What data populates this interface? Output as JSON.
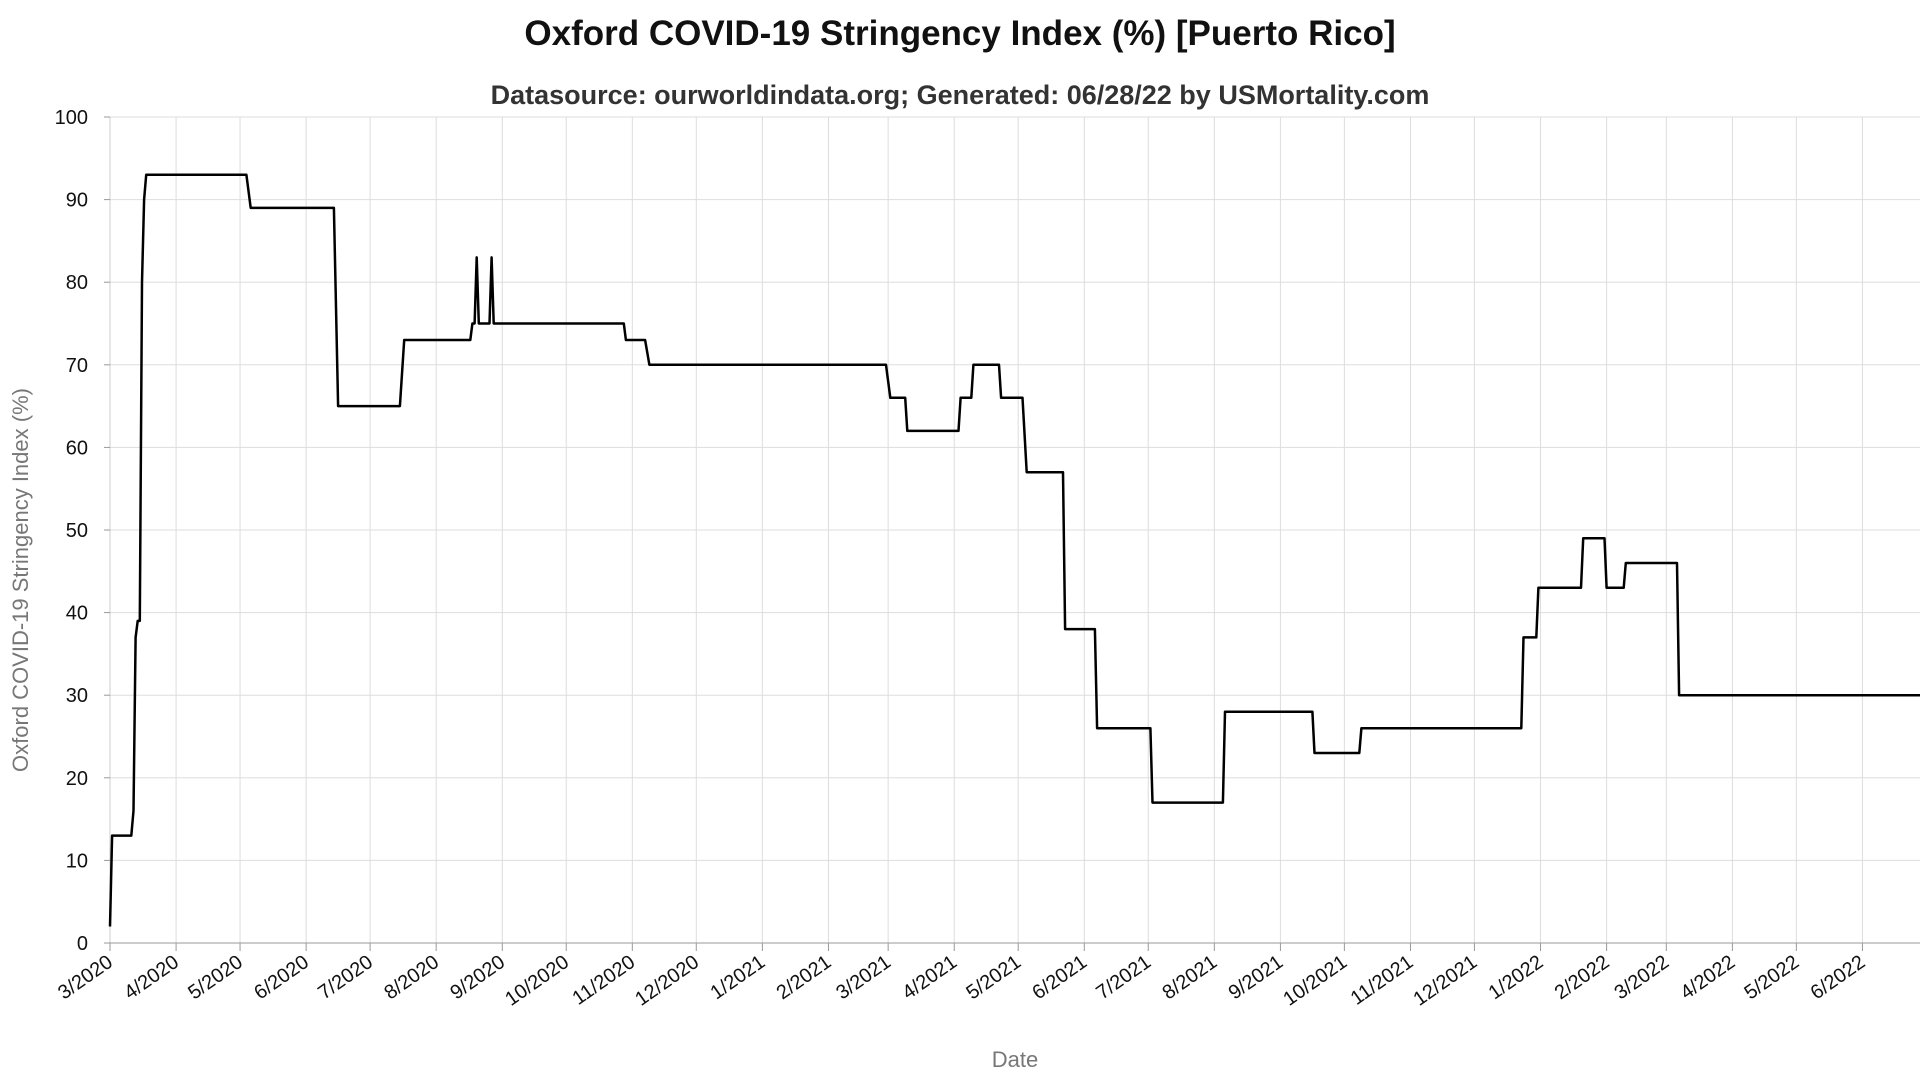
{
  "chart_data": {
    "type": "line",
    "title": "Oxford COVID-19 Stringency Index (%) [Puerto Rico]",
    "subtitle": "Datasource: ourworldindata.org; Generated: 06/28/22 by USMortality.com",
    "xlabel": "Date",
    "ylabel": "Oxford COVID-19 Stringency Index (%)",
    "ylim": [
      0,
      100
    ],
    "yticks": [
      0,
      10,
      20,
      30,
      40,
      50,
      60,
      70,
      80,
      90,
      100
    ],
    "xlim": [
      "2020-03-01",
      "2022-06-28"
    ],
    "xticks": [
      {
        "date": "2020-03-01",
        "label": "3/2020"
      },
      {
        "date": "2020-04-01",
        "label": "4/2020"
      },
      {
        "date": "2020-05-01",
        "label": "5/2020"
      },
      {
        "date": "2020-06-01",
        "label": "6/2020"
      },
      {
        "date": "2020-07-01",
        "label": "7/2020"
      },
      {
        "date": "2020-08-01",
        "label": "8/2020"
      },
      {
        "date": "2020-09-01",
        "label": "9/2020"
      },
      {
        "date": "2020-10-01",
        "label": "10/2020"
      },
      {
        "date": "2020-11-01",
        "label": "11/2020"
      },
      {
        "date": "2020-12-01",
        "label": "12/2020"
      },
      {
        "date": "2021-01-01",
        "label": "1/2021"
      },
      {
        "date": "2021-02-01",
        "label": "2/2021"
      },
      {
        "date": "2021-03-01",
        "label": "3/2021"
      },
      {
        "date": "2021-04-01",
        "label": "4/2021"
      },
      {
        "date": "2021-05-01",
        "label": "5/2021"
      },
      {
        "date": "2021-06-01",
        "label": "6/2021"
      },
      {
        "date": "2021-07-01",
        "label": "7/2021"
      },
      {
        "date": "2021-08-01",
        "label": "8/2021"
      },
      {
        "date": "2021-09-01",
        "label": "9/2021"
      },
      {
        "date": "2021-10-01",
        "label": "10/2021"
      },
      {
        "date": "2021-11-01",
        "label": "11/2021"
      },
      {
        "date": "2021-12-01",
        "label": "12/2021"
      },
      {
        "date": "2022-01-01",
        "label": "1/2022"
      },
      {
        "date": "2022-02-01",
        "label": "2/2022"
      },
      {
        "date": "2022-03-01",
        "label": "3/2022"
      },
      {
        "date": "2022-04-01",
        "label": "4/2022"
      },
      {
        "date": "2022-05-01",
        "label": "5/2022"
      },
      {
        "date": "2022-06-01",
        "label": "6/2022"
      }
    ],
    "grid": true,
    "line_color": "#000000",
    "series": [
      {
        "points": [
          [
            "2020-03-01",
            2
          ],
          [
            "2020-03-02",
            13
          ],
          [
            "2020-03-11",
            13
          ],
          [
            "2020-03-12",
            16
          ],
          [
            "2020-03-13",
            37
          ],
          [
            "2020-03-14",
            39
          ],
          [
            "2020-03-15",
            39
          ],
          [
            "2020-03-16",
            80
          ],
          [
            "2020-03-17",
            90
          ],
          [
            "2020-03-18",
            93
          ],
          [
            "2020-05-04",
            93
          ],
          [
            "2020-05-06",
            89
          ],
          [
            "2020-06-14",
            89
          ],
          [
            "2020-06-16",
            65
          ],
          [
            "2020-07-15",
            65
          ],
          [
            "2020-07-17",
            73
          ],
          [
            "2020-08-17",
            73
          ],
          [
            "2020-08-18",
            75
          ],
          [
            "2020-08-19",
            75
          ],
          [
            "2020-08-20",
            83
          ],
          [
            "2020-08-21",
            75
          ],
          [
            "2020-08-26",
            75
          ],
          [
            "2020-08-27",
            83
          ],
          [
            "2020-08-28",
            75
          ],
          [
            "2020-10-28",
            75
          ],
          [
            "2020-10-29",
            73
          ],
          [
            "2020-11-07",
            73
          ],
          [
            "2020-11-09",
            70
          ],
          [
            "2021-02-28",
            70
          ],
          [
            "2021-03-02",
            66
          ],
          [
            "2021-03-09",
            66
          ],
          [
            "2021-03-10",
            62
          ],
          [
            "2021-04-03",
            62
          ],
          [
            "2021-04-04",
            66
          ],
          [
            "2021-04-09",
            66
          ],
          [
            "2021-04-10",
            70
          ],
          [
            "2021-04-22",
            70
          ],
          [
            "2021-04-23",
            66
          ],
          [
            "2021-05-03",
            66
          ],
          [
            "2021-05-05",
            57
          ],
          [
            "2021-05-22",
            57
          ],
          [
            "2021-05-23",
            38
          ],
          [
            "2021-06-06",
            38
          ],
          [
            "2021-06-07",
            26
          ],
          [
            "2021-07-02",
            26
          ],
          [
            "2021-07-03",
            17
          ],
          [
            "2021-08-05",
            17
          ],
          [
            "2021-08-06",
            28
          ],
          [
            "2021-09-16",
            28
          ],
          [
            "2021-09-17",
            23
          ],
          [
            "2021-10-08",
            23
          ],
          [
            "2021-10-09",
            26
          ],
          [
            "2021-12-23",
            26
          ],
          [
            "2021-12-24",
            37
          ],
          [
            "2021-12-30",
            37
          ],
          [
            "2021-12-31",
            43
          ],
          [
            "2022-01-20",
            43
          ],
          [
            "2022-01-21",
            49
          ],
          [
            "2022-01-31",
            49
          ],
          [
            "2022-02-01",
            43
          ],
          [
            "2022-02-09",
            43
          ],
          [
            "2022-02-10",
            46
          ],
          [
            "2022-03-06",
            46
          ],
          [
            "2022-03-07",
            30
          ],
          [
            "2022-06-28",
            30
          ]
        ]
      }
    ]
  }
}
